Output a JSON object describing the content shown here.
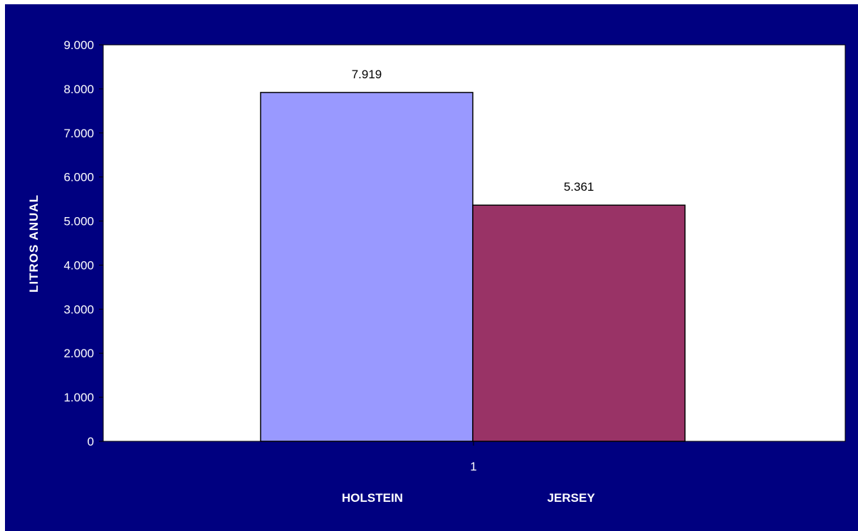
{
  "chart_data": {
    "type": "bar",
    "categories": [
      "1"
    ],
    "series": [
      {
        "name": "HOLSTEIN",
        "values": [
          7919
        ],
        "color": "#9999ff"
      },
      {
        "name": "JERSEY",
        "values": [
          5361
        ],
        "color": "#993366"
      }
    ],
    "data_labels": [
      "7.919",
      "5.361"
    ],
    "ylabel": "LITROS ANUAL",
    "xlabel": "",
    "ylim": [
      0,
      9000
    ],
    "y_ticks": [
      {
        "value": 0,
        "label": "0"
      },
      {
        "value": 1000,
        "label": "1.000"
      },
      {
        "value": 2000,
        "label": "2.000"
      },
      {
        "value": 3000,
        "label": "3.000"
      },
      {
        "value": 4000,
        "label": "4.000"
      },
      {
        "value": 5000,
        "label": "5.000"
      },
      {
        "value": 6000,
        "label": "6.000"
      },
      {
        "value": 7000,
        "label": "7.000"
      },
      {
        "value": 8000,
        "label": "8.000"
      },
      {
        "value": 9000,
        "label": "9.000"
      }
    ],
    "grid": false,
    "legend_position": "bottom",
    "background_color": "#000080",
    "plot_background_color": "#ffffff"
  }
}
